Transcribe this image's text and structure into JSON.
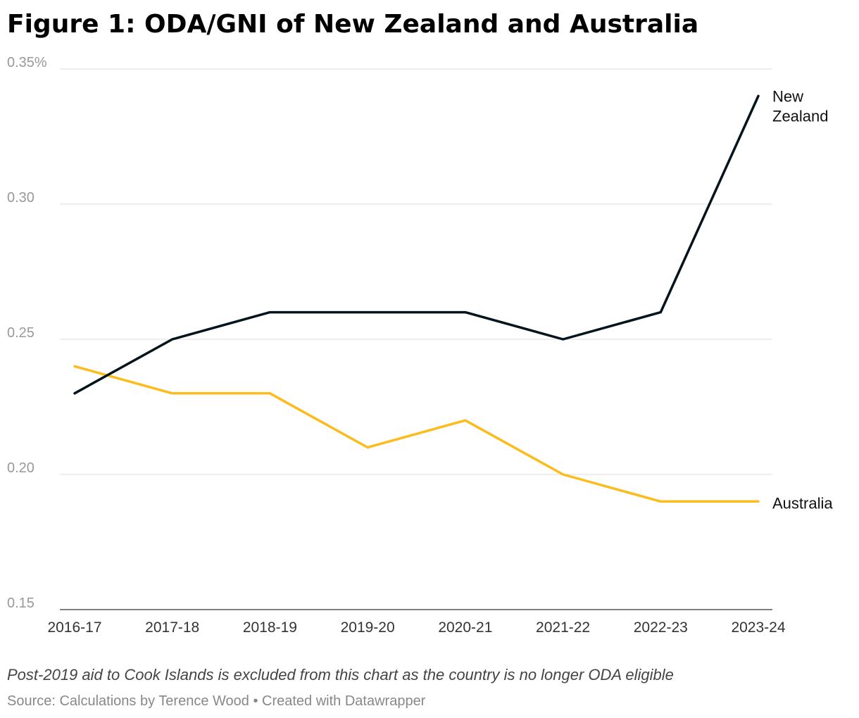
{
  "chart_data": {
    "type": "line",
    "title": "Figure 1: ODA/GNI of New Zealand and Australia",
    "x": [
      "2016-17",
      "2017-18",
      "2018-19",
      "2019-20",
      "2020-21",
      "2021-22",
      "2022-23",
      "2023-24"
    ],
    "series": [
      {
        "name": "New Zealand",
        "label_lines": [
          "New",
          "Zealand"
        ],
        "color": "#03141c",
        "values": [
          0.23,
          0.25,
          0.26,
          0.26,
          0.26,
          0.25,
          0.26,
          0.34
        ]
      },
      {
        "name": "Australia",
        "label_lines": [
          "Australia"
        ],
        "color": "#fbbc1c",
        "values": [
          0.24,
          0.23,
          0.23,
          0.21,
          0.22,
          0.2,
          0.19,
          0.19
        ]
      }
    ],
    "ylim": [
      0.15,
      0.35
    ],
    "y_ticks": [
      {
        "value": 0.35,
        "label": "0.35%"
      },
      {
        "value": 0.3,
        "label": "0.30"
      },
      {
        "value": 0.25,
        "label": "0.25"
      },
      {
        "value": 0.2,
        "label": "0.20"
      },
      {
        "value": 0.15,
        "label": "0.15"
      }
    ],
    "xlabel": "",
    "ylabel": "",
    "grid": true,
    "legend": "direct labels at line ends"
  },
  "footer": {
    "note": "Post-2019 aid to Cook Islands is excluded from this chart as the country is no longer ODA eligible",
    "source": "Source: Calculations by Terence Wood • Created with Datawrapper"
  },
  "colors": {
    "gridline": "#dddddd",
    "axis_baseline": "#333333",
    "tick_label": "#999999",
    "x_tick_label": "#333333"
  }
}
